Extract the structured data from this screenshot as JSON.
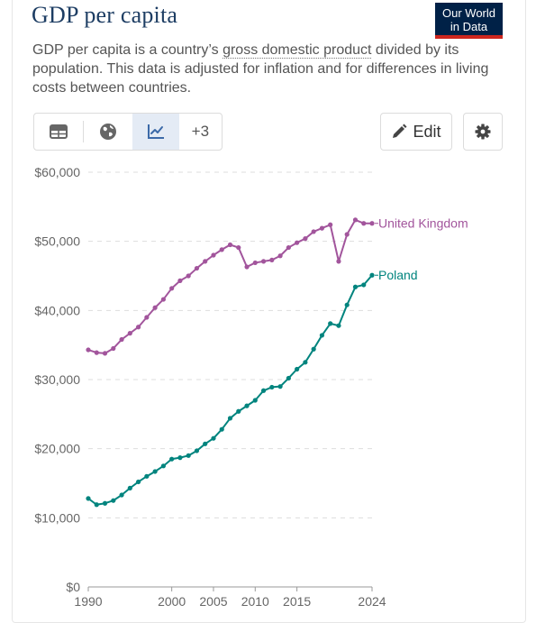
{
  "header": {
    "title": "GDP per capita",
    "subtitle_before": "GDP per capita is a country’s ",
    "subtitle_term": "gross domestic product",
    "subtitle_after": " divided by its population. This data is adjusted for inflation and for differences in living costs between countries.",
    "logo_line1": "Our World",
    "logo_line2": "in Data"
  },
  "toolbar": {
    "tabs": [
      {
        "icon": "table-icon",
        "active": false
      },
      {
        "icon": "globe-icon",
        "active": false
      },
      {
        "icon": "line-chart-icon",
        "active": true
      }
    ],
    "more_label": "+3",
    "edit_label": "Edit",
    "settings_icon": "gear-icon"
  },
  "colors": {
    "uk": "#a2559c",
    "poland": "#00847e",
    "title": "#1d3d63",
    "grid": "#dddddd"
  },
  "chart_data": {
    "type": "line",
    "title": "",
    "xlabel": "",
    "ylabel": "",
    "xlim": [
      1990,
      2024
    ],
    "ylim": [
      0,
      60000
    ],
    "yticks": [
      0,
      10000,
      20000,
      30000,
      40000,
      50000,
      60000
    ],
    "ytick_labels": [
      "$0",
      "$10,000",
      "$20,000",
      "$30,000",
      "$40,000",
      "$50,000",
      "$60,000"
    ],
    "xticks": [
      1990,
      2000,
      2005,
      2010,
      2015,
      2024
    ],
    "xtick_labels": [
      "1990",
      "2000",
      "2005",
      "2010",
      "2015",
      "2024"
    ],
    "grid": true,
    "x": [
      1990,
      1991,
      1992,
      1993,
      1994,
      1995,
      1996,
      1997,
      1998,
      1999,
      2000,
      2001,
      2002,
      2003,
      2004,
      2005,
      2006,
      2007,
      2008,
      2009,
      2010,
      2011,
      2012,
      2013,
      2014,
      2015,
      2016,
      2017,
      2018,
      2019,
      2020,
      2021,
      2022,
      2023,
      2024
    ],
    "series": [
      {
        "name": "United Kingdom",
        "color": "#a2559c",
        "values": [
          34300,
          33900,
          33800,
          34500,
          35800,
          36700,
          37600,
          39000,
          40400,
          41600,
          43200,
          44300,
          45000,
          46100,
          47100,
          48000,
          48800,
          49500,
          49100,
          46300,
          46900,
          47100,
          47300,
          47900,
          49100,
          49800,
          50400,
          51400,
          51900,
          52400,
          47100,
          51000,
          53100,
          52600,
          52600
        ]
      },
      {
        "name": "Poland",
        "color": "#00847e",
        "values": [
          12800,
          11900,
          12100,
          12500,
          13300,
          14300,
          15200,
          16000,
          16700,
          17500,
          18500,
          18700,
          19000,
          19700,
          20700,
          21500,
          22800,
          24400,
          25400,
          26200,
          27000,
          28400,
          28900,
          29000,
          30200,
          31500,
          32500,
          34400,
          36400,
          38100,
          37800,
          40800,
          43400,
          43700,
          45100
        ]
      }
    ]
  }
}
